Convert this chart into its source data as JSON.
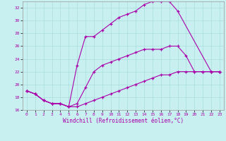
{
  "xlabel": "Windchill (Refroidissement éolien,°C)",
  "bg_color": "#c8f0f0",
  "grid_color": "#aadcdc",
  "line_color": "#aa00aa",
  "xlim": [
    -0.5,
    23.5
  ],
  "ylim": [
    16,
    33
  ],
  "xticks": [
    0,
    1,
    2,
    3,
    4,
    5,
    6,
    7,
    8,
    9,
    10,
    11,
    12,
    13,
    14,
    15,
    16,
    17,
    18,
    19,
    20,
    21,
    22,
    23
  ],
  "yticks": [
    16,
    18,
    20,
    22,
    24,
    26,
    28,
    30,
    32
  ],
  "line1_x": [
    0,
    1,
    2,
    3,
    4,
    5,
    6,
    7,
    8,
    9,
    10,
    11,
    12,
    13,
    14,
    15,
    16,
    17,
    18,
    22,
    23
  ],
  "line1_y": [
    19.0,
    18.5,
    17.5,
    17.0,
    17.0,
    16.5,
    23.0,
    27.5,
    27.5,
    28.5,
    29.5,
    30.5,
    31.0,
    31.5,
    32.5,
    33.0,
    33.0,
    33.0,
    31.5,
    22.0,
    22.0
  ],
  "line2_x": [
    0,
    1,
    2,
    3,
    4,
    5,
    6,
    7,
    8,
    9,
    10,
    11,
    12,
    13,
    14,
    15,
    16,
    17,
    18,
    19,
    20,
    21,
    22,
    23
  ],
  "line2_y": [
    19.0,
    18.5,
    17.5,
    17.0,
    17.0,
    16.5,
    17.0,
    19.5,
    22.0,
    23.0,
    23.5,
    24.0,
    24.5,
    25.0,
    25.5,
    25.5,
    25.5,
    26.0,
    26.0,
    24.5,
    22.0,
    22.0,
    22.0,
    22.0
  ],
  "line3_x": [
    0,
    1,
    2,
    3,
    4,
    5,
    6,
    7,
    8,
    9,
    10,
    11,
    12,
    13,
    14,
    15,
    16,
    17,
    18,
    19,
    20,
    21,
    22,
    23
  ],
  "line3_y": [
    19.0,
    18.5,
    17.5,
    17.0,
    17.0,
    16.5,
    16.5,
    17.0,
    17.5,
    18.0,
    18.5,
    19.0,
    19.5,
    20.0,
    20.5,
    21.0,
    21.5,
    21.5,
    22.0,
    22.0,
    22.0,
    22.0,
    22.0,
    22.0
  ]
}
